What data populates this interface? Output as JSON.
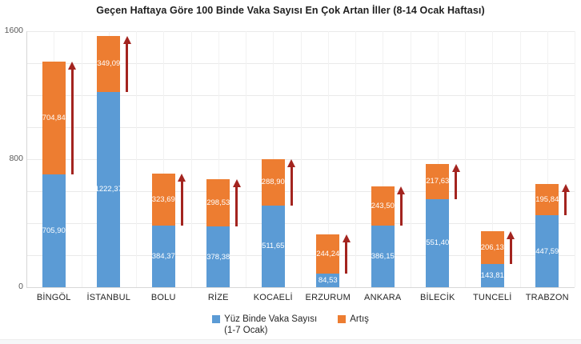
{
  "chart_data": {
    "type": "bar",
    "stacked": true,
    "orientation": "vertical",
    "title": "Geçen Haftaya Göre 100 Binde Vaka Sayısı En Çok Artan İller (8-14 Ocak Haftası)",
    "categories": [
      "BİNGÖL",
      "İSTANBUL",
      "BOLU",
      "RİZE",
      "KOCAELİ",
      "ERZURUM",
      "ANKARA",
      "BİLECİK",
      "TUNCELİ",
      "TRABZON"
    ],
    "series": [
      {
        "name": "Yüz Binde Vaka Sayısı (1-7 Ocak)",
        "color": "#5B9BD5",
        "values": [
          705.9,
          1222.37,
          384.37,
          378.38,
          511.65,
          84.53,
          386.15,
          551.4,
          143.81,
          447.59
        ],
        "labels": [
          "705,90",
          "1222,37",
          "384,37",
          "378,38",
          "511,65",
          "84,53",
          "386,15",
          "551,40",
          "143,81",
          "447,59"
        ]
      },
      {
        "name": "Artış",
        "color": "#ED7D31",
        "values": [
          704.84,
          349.09,
          323.69,
          298.53,
          288.9,
          244.24,
          243.5,
          217.63,
          206.13,
          195.84
        ],
        "labels": [
          "704,84",
          "349,09",
          "323,69",
          "298,53",
          "288,90",
          "244,24",
          "243,50",
          "217,63",
          "206,13",
          "195,84"
        ]
      }
    ],
    "annotations": {
      "type": "up-arrow",
      "color": "#a3241f",
      "description": "dark red upward arrow spanning each Artış segment, right of every bar"
    },
    "y_axis": {
      "min": 0,
      "max": 1600,
      "tick_values": [
        0,
        800,
        1600
      ],
      "tick_labels": [
        "0",
        "800",
        "1600"
      ],
      "minor_grid_step": 200
    },
    "x_axis": {
      "grid": true
    },
    "grid": "on",
    "legend_position": "bottom",
    "data_label_color": "#FFFFFF"
  },
  "legend": {
    "items": [
      {
        "swatch_color": "#5B9BD5",
        "lines": [
          "Yüz Binde Vaka Sayısı",
          "(1-7 Ocak)"
        ]
      },
      {
        "swatch_color": "#ED7D31",
        "lines": [
          "Artış"
        ]
      }
    ]
  }
}
